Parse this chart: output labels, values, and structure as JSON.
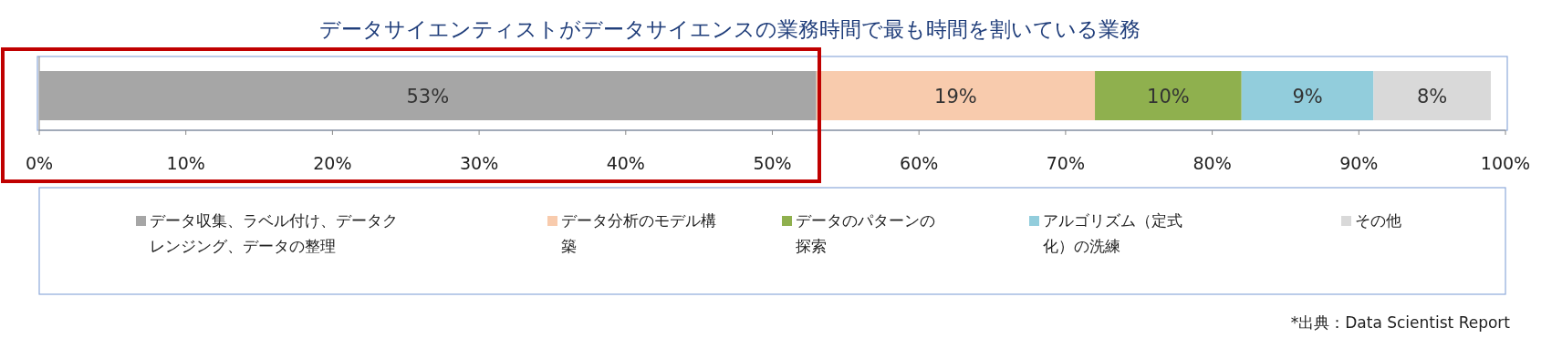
{
  "chart_data": {
    "type": "bar",
    "orientation": "horizontal",
    "stacked": true,
    "title": "データサイエンティストがデータサイエンスの業務時間で最も時間を割いている業務",
    "categories": [
      null
    ],
    "series": [
      {
        "name": "データ収集、ラベル付け、データクレンジング、データの整理",
        "color": "#a6a6a6",
        "values": [
          53
        ],
        "value_labels": [
          "53%"
        ]
      },
      {
        "name": "データ分析のモデル構築",
        "color": "#f8cbad",
        "values": [
          19
        ],
        "value_labels": [
          "19%"
        ]
      },
      {
        "name": "データのパターンの探索",
        "color": "#8fb04e",
        "values": [
          10
        ],
        "value_labels": [
          "10%"
        ]
      },
      {
        "name": "アルゴリズム（定式化）の洗練",
        "color": "#92cddc",
        "values": [
          9
        ],
        "value_labels": [
          "9%"
        ]
      },
      {
        "name": "その他",
        "color": "#d9d9d9",
        "values": [
          8
        ],
        "value_labels": [
          "8%"
        ]
      }
    ],
    "xlim": [
      0,
      100
    ],
    "xticks": [
      {
        "value": 0,
        "label": "0%"
      },
      {
        "value": 10,
        "label": "10%"
      },
      {
        "value": 20,
        "label": "20%"
      },
      {
        "value": 30,
        "label": "30%"
      },
      {
        "value": 40,
        "label": "40%"
      },
      {
        "value": 50,
        "label": "50%"
      },
      {
        "value": 60,
        "label": "60%"
      },
      {
        "value": 70,
        "label": "70%"
      },
      {
        "value": 80,
        "label": "80%"
      },
      {
        "value": 90,
        "label": "90%"
      },
      {
        "value": 100,
        "label": "100%"
      }
    ],
    "legend": "bottom",
    "grid": false,
    "annotations": [
      "*出典：Data Scientist Report"
    ]
  }
}
